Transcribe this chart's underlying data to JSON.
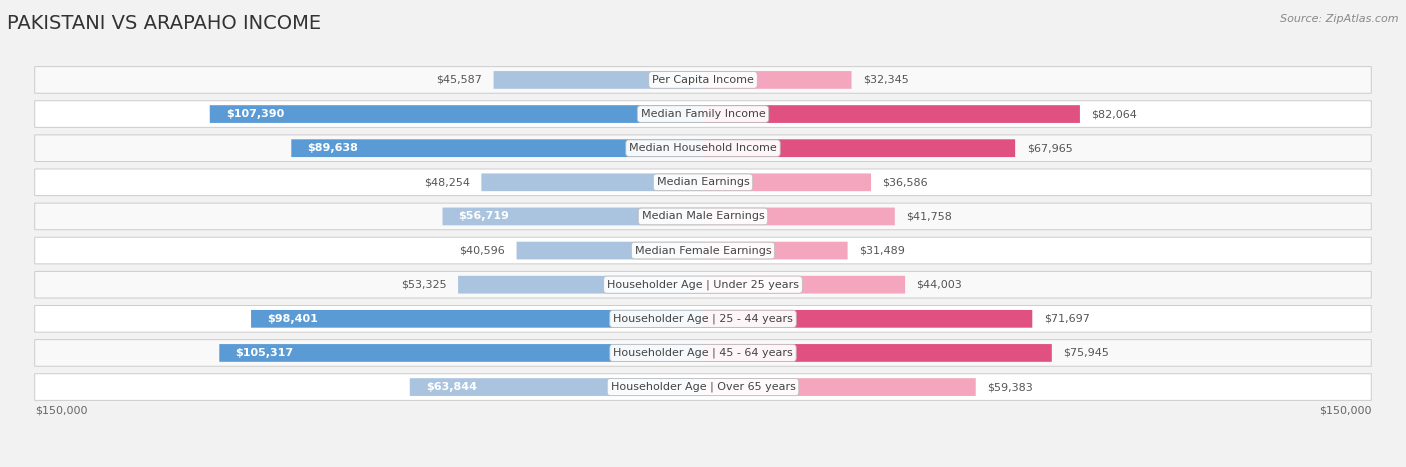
{
  "title": "PAKISTANI VS ARAPAHO INCOME",
  "source": "Source: ZipAtlas.com",
  "categories": [
    "Per Capita Income",
    "Median Family Income",
    "Median Household Income",
    "Median Earnings",
    "Median Male Earnings",
    "Median Female Earnings",
    "Householder Age | Under 25 years",
    "Householder Age | 25 - 44 years",
    "Householder Age | 45 - 64 years",
    "Householder Age | Over 65 years"
  ],
  "pakistani_values": [
    45587,
    107390,
    89638,
    48254,
    56719,
    40596,
    53325,
    98401,
    105317,
    63844
  ],
  "arapaho_values": [
    32345,
    82064,
    67965,
    36586,
    41758,
    31489,
    44003,
    71697,
    75945,
    59383
  ],
  "pakistani_labels": [
    "$45,587",
    "$107,390",
    "$89,638",
    "$48,254",
    "$56,719",
    "$40,596",
    "$53,325",
    "$98,401",
    "$105,317",
    "$63,844"
  ],
  "arapaho_labels": [
    "$32,345",
    "$82,064",
    "$67,965",
    "$36,586",
    "$41,758",
    "$31,489",
    "$44,003",
    "$71,697",
    "$75,945",
    "$59,383"
  ],
  "pak_label_inside": [
    false,
    true,
    true,
    false,
    false,
    false,
    false,
    true,
    true,
    false
  ],
  "ara_label_inside": [
    false,
    false,
    false,
    false,
    false,
    false,
    false,
    false,
    false,
    false
  ],
  "pakistani_color_light": "#aac4e0",
  "pakistani_color_dark": "#5b9bd5",
  "arapaho_color_light": "#f4a6bf",
  "arapaho_color_dark": "#e05080",
  "max_value": 150000,
  "bg_color": "#f2f2f2",
  "row_colors": [
    "#f9f9f9",
    "#ffffff",
    "#f9f9f9",
    "#ffffff",
    "#f9f9f9",
    "#ffffff",
    "#f9f9f9",
    "#ffffff",
    "#f9f9f9",
    "#ffffff"
  ],
  "title_fontsize": 14,
  "label_fontsize": 8,
  "category_fontsize": 8,
  "axis_label_fontsize": 8
}
